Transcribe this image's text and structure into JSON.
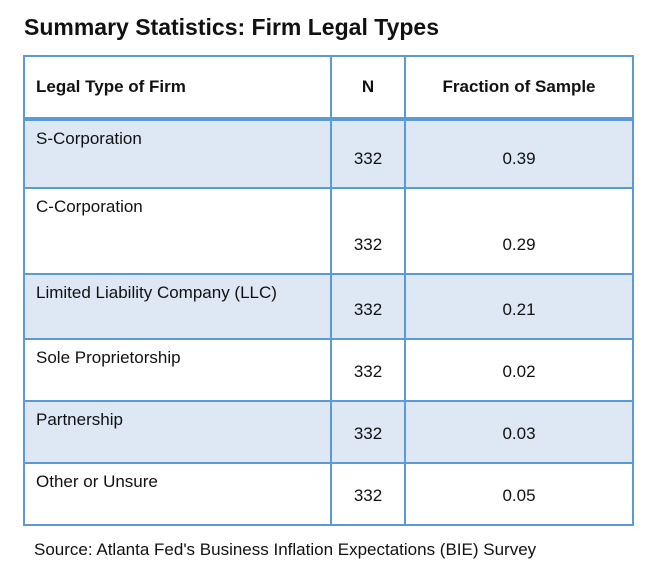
{
  "title": "Summary Statistics: Firm Legal Types",
  "headers": [
    "Legal Type of Firm",
    "N",
    "Fraction of Sample"
  ],
  "rows": [
    {
      "type": "S-Corporation",
      "n": "332",
      "fraction": "0.39"
    },
    {
      "type": "C-Corporation",
      "n": "332",
      "fraction": "0.29"
    },
    {
      "type": "Limited Liability Company (LLC)",
      "n": "332",
      "fraction": "0.21"
    },
    {
      "type": "Sole Proprietorship",
      "n": "332",
      "fraction": "0.02"
    },
    {
      "type": "Partnership",
      "n": "332",
      "fraction": "0.03"
    },
    {
      "type": "Other or Unsure",
      "n": "332",
      "fraction": "0.05"
    }
  ],
  "source": "Source: Atlanta Fed's Business Inflation Expectations (BIE) Survey",
  "colors": {
    "border": "#5b9bd5",
    "alt_row": "#dde8f4"
  }
}
